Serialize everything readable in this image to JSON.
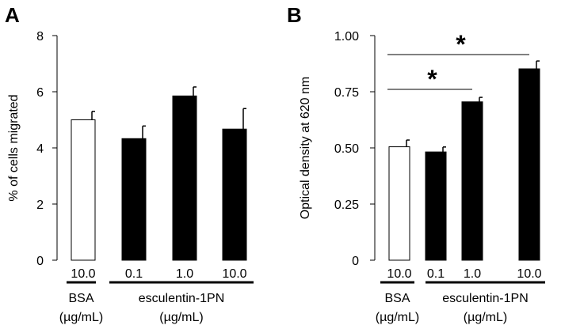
{
  "chart_data": [
    {
      "type": "bar",
      "panel_label": "A",
      "ylabel": "% of cells migrated",
      "ylim": [
        0,
        8
      ],
      "yticks": [
        "0",
        "2",
        "4",
        "6",
        "8"
      ],
      "categories": [
        "10.0",
        "0.1",
        "1.0",
        "10.0"
      ],
      "values": [
        5.0,
        4.33,
        5.85,
        4.67
      ],
      "errors": [
        0.3,
        0.45,
        0.32,
        0.73
      ],
      "fills": [
        "#ffffff",
        "#000000",
        "#000000",
        "#000000"
      ],
      "groups": [
        {
          "name": "BSA",
          "unit": "(µg/mL)"
        },
        {
          "name": "esculentin-1PN",
          "unit": "(µg/mL)"
        }
      ],
      "significance": []
    },
    {
      "type": "bar",
      "panel_label": "B",
      "ylabel": "Optical density at 620 nm",
      "ylim": [
        0,
        1
      ],
      "yticks": [
        "0",
        "0.25",
        "0.50",
        "0.75",
        "1.00"
      ],
      "categories": [
        "10.0",
        "0.1",
        "1.0",
        "10.0"
      ],
      "values": [
        0.505,
        0.482,
        0.705,
        0.852
      ],
      "errors": [
        0.03,
        0.022,
        0.02,
        0.035
      ],
      "fills": [
        "#ffffff",
        "#000000",
        "#000000",
        "#000000"
      ],
      "groups": [
        {
          "name": "BSA",
          "unit": "(µg/mL)"
        },
        {
          "name": "esculentin-1PN",
          "unit": "(µg/mL)"
        }
      ],
      "significance": [
        {
          "from": 0,
          "to": 2,
          "label": "*"
        },
        {
          "from": 0,
          "to": 3,
          "label": "*"
        }
      ]
    }
  ]
}
